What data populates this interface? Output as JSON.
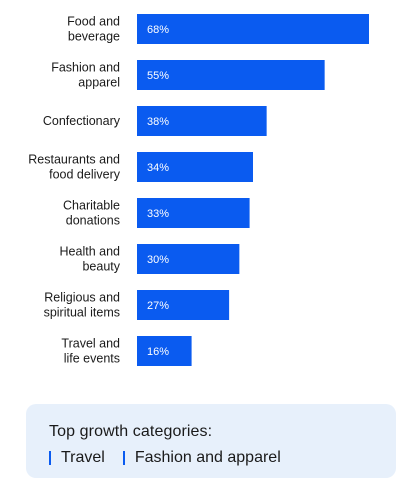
{
  "chart_data": {
    "type": "bar",
    "orientation": "horizontal",
    "categories": [
      [
        "Food and",
        "beverage"
      ],
      [
        "Fashion and",
        "apparel"
      ],
      [
        "Confectionary"
      ],
      [
        "Restaurants and",
        "food delivery"
      ],
      [
        "Charitable",
        "donations"
      ],
      [
        "Health and",
        "beauty"
      ],
      [
        "Religious and",
        "spiritual items"
      ],
      [
        "Travel and",
        "life events"
      ]
    ],
    "values": [
      68,
      55,
      38,
      34,
      33,
      30,
      27,
      16
    ],
    "value_labels": [
      "68%",
      "55%",
      "38%",
      "34%",
      "33%",
      "30%",
      "27%",
      "16%"
    ],
    "unit": "%",
    "xlim": [
      0,
      70
    ],
    "grid": false,
    "bar_color": "#0a5bf0"
  },
  "info_box": {
    "title": "Top growth categories:",
    "items": [
      "Travel",
      "Fashion and apparel"
    ],
    "marker_color": "#0a5bf0",
    "background": "#e7f0fb"
  }
}
